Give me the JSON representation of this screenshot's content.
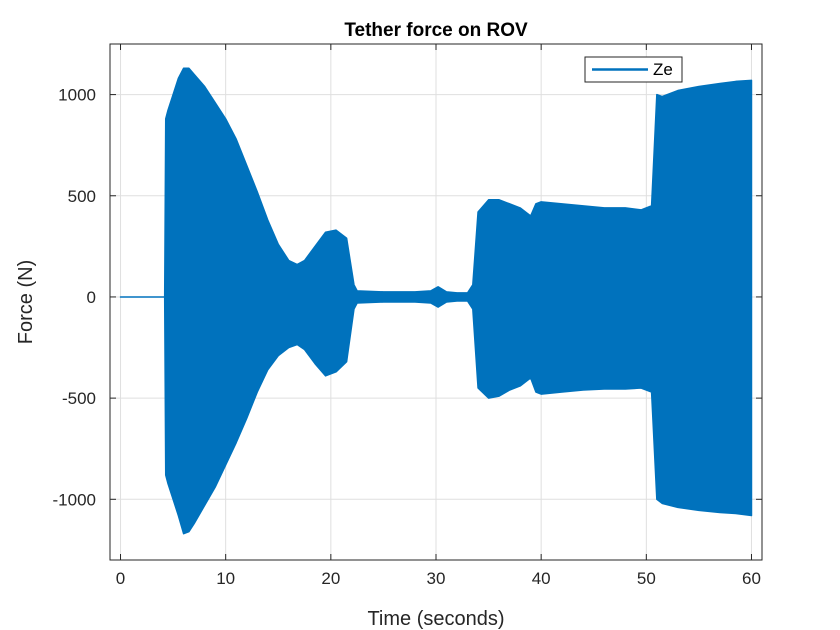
{
  "chart_data": {
    "type": "line",
    "title": "Tether force on ROV",
    "xlabel": "Time (seconds)",
    "ylabel": "Force (N)",
    "xlim": [
      -1,
      61
    ],
    "ylim": [
      -1300,
      1250
    ],
    "xticks": [
      0,
      10,
      20,
      30,
      40,
      50,
      60
    ],
    "yticks": [
      -1000,
      -500,
      0,
      500,
      1000
    ],
    "grid": true,
    "legend": {
      "position": "top-right",
      "entries": [
        "Ze"
      ]
    },
    "colors": {
      "series": "#0072bd",
      "axes": "#262626",
      "grid": "#dfdfdf"
    },
    "series": [
      {
        "name": "Ze",
        "envelope_note": "rapidly oscillating signal, shown as its min/max envelope",
        "x": [
          0,
          4.2,
          4.3,
          4.5,
          5,
          5.5,
          6,
          6.5,
          7,
          8,
          9,
          10,
          11,
          12,
          13,
          14,
          15,
          16,
          16.8,
          17.5,
          18.5,
          19.5,
          20.5,
          21.5,
          22.2,
          22.5,
          25,
          28,
          29.5,
          30.2,
          31,
          32,
          33,
          33.5,
          34,
          35,
          36,
          37,
          38,
          39,
          39.5,
          40,
          42,
          44,
          46,
          48,
          49.5,
          50.5,
          51,
          51.5,
          53,
          55,
          57,
          58.5,
          60
        ],
        "upper": [
          0,
          0,
          880,
          920,
          1000,
          1080,
          1130,
          1130,
          1100,
          1040,
          960,
          880,
          780,
          650,
          520,
          380,
          260,
          180,
          160,
          180,
          250,
          320,
          330,
          290,
          60,
          30,
          25,
          25,
          30,
          50,
          25,
          20,
          20,
          60,
          420,
          480,
          480,
          460,
          440,
          400,
          460,
          470,
          460,
          450,
          440,
          440,
          430,
          450,
          1000,
          990,
          1020,
          1040,
          1055,
          1065,
          1070
        ],
        "lower": [
          0,
          0,
          -880,
          -920,
          -1000,
          -1080,
          -1170,
          -1160,
          -1120,
          -1030,
          -940,
          -830,
          -720,
          -600,
          -470,
          -360,
          -290,
          -250,
          -235,
          -260,
          -330,
          -390,
          -370,
          -320,
          -60,
          -30,
          -25,
          -25,
          -30,
          -50,
          -25,
          -20,
          -20,
          -60,
          -450,
          -500,
          -490,
          -460,
          -440,
          -400,
          -470,
          -480,
          -470,
          -460,
          -455,
          -455,
          -450,
          -470,
          -1000,
          -1020,
          -1040,
          -1055,
          -1065,
          -1070,
          -1080
        ]
      }
    ]
  }
}
